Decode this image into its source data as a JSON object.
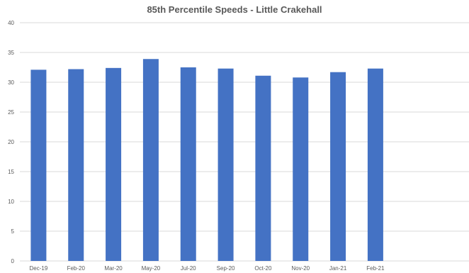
{
  "chart_data": {
    "type": "bar",
    "title": "85th Percentile Speeds - Little Crakehall",
    "xlabel": "",
    "ylabel": "",
    "categories": [
      "Dec-19",
      "Feb-20",
      "Mar-20",
      "May-20",
      "Jul-20",
      "Sep-20",
      "Oct-20",
      "Nov-20",
      "Jan-21",
      "Feb-21",
      "",
      ""
    ],
    "values": [
      32.1,
      32.2,
      32.4,
      33.9,
      32.5,
      32.3,
      31.1,
      30.8,
      31.7,
      32.3,
      null,
      null
    ],
    "ylim": [
      0,
      40
    ],
    "yticks": [
      0,
      5,
      10,
      15,
      20,
      25,
      30,
      35,
      40
    ],
    "grid": true,
    "legend": "none",
    "bar_color": "#4472C4",
    "grid_color": "#d9d9d9"
  }
}
